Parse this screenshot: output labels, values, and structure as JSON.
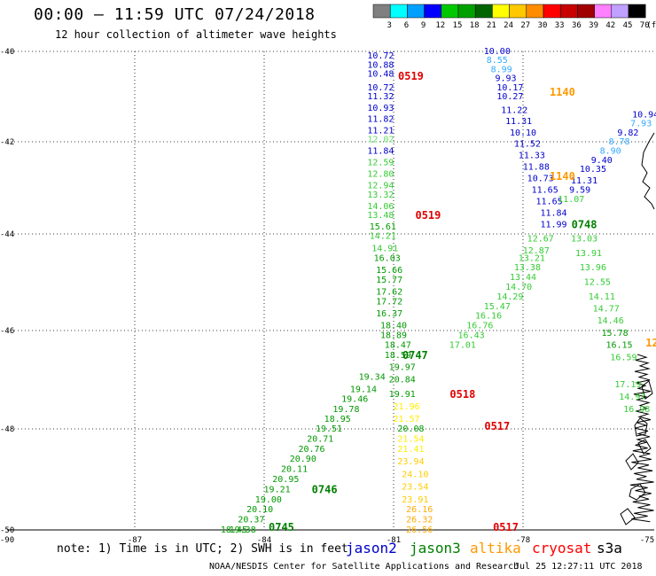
{
  "header": {
    "title": "00:00 – 11:59 UTC 07/24/2018",
    "subtitle": "12 hour collection of altimeter wave heights"
  },
  "colorbar": {
    "unit": "(ft)",
    "ticks": [
      "3",
      "6",
      "9",
      "12",
      "15",
      "18",
      "21",
      "24",
      "27",
      "30",
      "33",
      "36",
      "39",
      "42",
      "45",
      "70"
    ],
    "colors": [
      "#808080",
      "#00ffff",
      "#00a0ff",
      "#0000ff",
      "#00c800",
      "#00a000",
      "#006400",
      "#ffff00",
      "#ffc800",
      "#ff8c00",
      "#ff0000",
      "#c80000",
      "#a00000",
      "#ff80ff",
      "#c0a0ff",
      "#000000"
    ]
  },
  "map": {
    "lon_range": [
      -90,
      -75
    ],
    "lat_range": [
      -50,
      -40
    ],
    "lon_ticks": [
      "-90",
      "-87",
      "-84",
      "-81",
      "-78",
      "-75"
    ],
    "lat_ticks": [
      "-40",
      "-42",
      "-44",
      "-46",
      "-48",
      "-50"
    ],
    "grid_color": "#000000",
    "coast_color": "#000000"
  },
  "missions": [
    {
      "name": "jason2",
      "color": "#0000cc"
    },
    {
      "name": "jason3",
      "color": "#008000"
    },
    {
      "name": "altika",
      "color": "#ff9900"
    },
    {
      "name": "cryosat",
      "color": "#ff0000"
    },
    {
      "name": "s3a",
      "color": "#000000"
    }
  ],
  "passes": [
    {
      "time": "0519",
      "mission": "cryosat",
      "lon": -80.6,
      "lat": -40.55,
      "color": "#e00000"
    },
    {
      "time": "1140",
      "mission": "altika",
      "lon": -77.1,
      "lat": -40.9,
      "color": "#ff9900"
    },
    {
      "time": "1140",
      "mission": "altika",
      "lon": -77.1,
      "lat": -42.75,
      "color": "#ff9900"
    },
    {
      "time": "0519",
      "mission": "cryosat",
      "lon": -80.2,
      "lat": -43.6,
      "color": "#e00000"
    },
    {
      "time": "0748",
      "mission": "jason3",
      "lon": -76.6,
      "lat": -43.8,
      "color": "#008000"
    },
    {
      "time": "0747",
      "mission": "jason3",
      "lon": -80.5,
      "lat": -46.5,
      "color": "#008000"
    },
    {
      "time": "0518",
      "mission": "cryosat",
      "lon": -79.4,
      "lat": -47.3,
      "color": "#e00000"
    },
    {
      "time": "0517",
      "mission": "cryosat",
      "lon": -78.6,
      "lat": -47.95,
      "color": "#e00000"
    },
    {
      "time": "0746",
      "mission": "jason3",
      "lon": -82.6,
      "lat": -49.2,
      "color": "#008000"
    },
    {
      "time": "0745",
      "mission": "jason3",
      "lon": -83.6,
      "lat": -49.95,
      "color": "#008000"
    },
    {
      "time": "0517",
      "mission": "cryosat",
      "lon": -78.4,
      "lat": -49.95,
      "color": "#e00000"
    },
    {
      "time": "12",
      "mission": "altika",
      "lon": -75.05,
      "lat": -46.25,
      "color": "#ff9900"
    }
  ],
  "swh_labels": [
    {
      "v": "10.72",
      "lon": -81.3,
      "lat": -40.1,
      "c": "#0000cc"
    },
    {
      "v": "10.88",
      "lon": -81.3,
      "lat": -40.3,
      "c": "#0000cc"
    },
    {
      "v": "10.48",
      "lon": -81.3,
      "lat": -40.5,
      "c": "#0000cc"
    },
    {
      "v": "10.72",
      "lon": -81.3,
      "lat": -40.8,
      "c": "#0000cc"
    },
    {
      "v": "11.32",
      "lon": -81.3,
      "lat": -41.0,
      "c": "#0000cc"
    },
    {
      "v": "10.93",
      "lon": -81.3,
      "lat": -41.25,
      "c": "#0000cc"
    },
    {
      "v": "11.82",
      "lon": -81.3,
      "lat": -41.5,
      "c": "#0000cc"
    },
    {
      "v": "11.21",
      "lon": -81.3,
      "lat": -41.75,
      "c": "#0000cc"
    },
    {
      "v": "12.02",
      "lon": -81.3,
      "lat": -41.95,
      "c": "#66dd66"
    },
    {
      "v": "11.84",
      "lon": -81.3,
      "lat": -42.2,
      "c": "#0000cc"
    },
    {
      "v": "12.59",
      "lon": -81.3,
      "lat": -42.45,
      "c": "#33cc33"
    },
    {
      "v": "12.80",
      "lon": -81.3,
      "lat": -42.7,
      "c": "#33cc33"
    },
    {
      "v": "12.94",
      "lon": -81.3,
      "lat": -42.95,
      "c": "#33cc33"
    },
    {
      "v": "13.32",
      "lon": -81.3,
      "lat": -43.15,
      "c": "#33cc33"
    },
    {
      "v": "14.06",
      "lon": -81.3,
      "lat": -43.4,
      "c": "#33cc33"
    },
    {
      "v": "13.48",
      "lon": -81.3,
      "lat": -43.6,
      "c": "#33cc33"
    },
    {
      "v": "15.61",
      "lon": -81.25,
      "lat": -43.85,
      "c": "#009900"
    },
    {
      "v": "14.21",
      "lon": -81.25,
      "lat": -44.05,
      "c": "#33cc33"
    },
    {
      "v": "14.91",
      "lon": -81.2,
      "lat": -44.3,
      "c": "#33cc33"
    },
    {
      "v": "16.03",
      "lon": -81.15,
      "lat": -44.5,
      "c": "#009900"
    },
    {
      "v": "15.66",
      "lon": -81.1,
      "lat": -44.75,
      "c": "#009900"
    },
    {
      "v": "15.77",
      "lon": -81.1,
      "lat": -44.95,
      "c": "#009900"
    },
    {
      "v": "17.62",
      "lon": -81.1,
      "lat": -45.2,
      "c": "#009900"
    },
    {
      "v": "17.72",
      "lon": -81.1,
      "lat": -45.4,
      "c": "#009900"
    },
    {
      "v": "16.37",
      "lon": -81.1,
      "lat": -45.65,
      "c": "#009900"
    },
    {
      "v": "18.40",
      "lon": -81.0,
      "lat": -45.9,
      "c": "#009900"
    },
    {
      "v": "18.89",
      "lon": -81.0,
      "lat": -46.1,
      "c": "#009900"
    },
    {
      "v": "18.47",
      "lon": -80.9,
      "lat": -46.3,
      "c": "#009900"
    },
    {
      "v": "18.59",
      "lon": -80.9,
      "lat": -46.5,
      "c": "#009900"
    },
    {
      "v": "19.97",
      "lon": -80.8,
      "lat": -46.75,
      "c": "#009900"
    },
    {
      "v": "20.84",
      "lon": -80.8,
      "lat": -47.0,
      "c": "#009900"
    },
    {
      "v": "19.91",
      "lon": -80.8,
      "lat": -47.3,
      "c": "#009900"
    },
    {
      "v": "21.96",
      "lon": -80.7,
      "lat": -47.55,
      "c": "#ffee00"
    },
    {
      "v": "21.57",
      "lon": -80.7,
      "lat": -47.8,
      "c": "#ffee00"
    },
    {
      "v": "20.08",
      "lon": -80.6,
      "lat": -48.0,
      "c": "#009900"
    },
    {
      "v": "21.54",
      "lon": -80.6,
      "lat": -48.2,
      "c": "#ffee00"
    },
    {
      "v": "21.41",
      "lon": -80.6,
      "lat": -48.4,
      "c": "#ffee00"
    },
    {
      "v": "23.94",
      "lon": -80.6,
      "lat": -48.65,
      "c": "#ffcc00"
    },
    {
      "v": "24.10",
      "lon": -80.5,
      "lat": -48.9,
      "c": "#ffcc00"
    },
    {
      "v": "23.54",
      "lon": -80.5,
      "lat": -49.15,
      "c": "#ffcc00"
    },
    {
      "v": "23.91",
      "lon": -80.5,
      "lat": -49.4,
      "c": "#ffcc00"
    },
    {
      "v": "26.16",
      "lon": -80.4,
      "lat": -49.6,
      "c": "#ffaa00"
    },
    {
      "v": "26.32",
      "lon": -80.4,
      "lat": -49.8,
      "c": "#ffaa00"
    },
    {
      "v": "26.56",
      "lon": -80.4,
      "lat": -50.0,
      "c": "#ffaa00"
    },
    {
      "v": "10.00",
      "lon": -78.6,
      "lat": -40.0,
      "c": "#0000cc"
    },
    {
      "v": "8.55",
      "lon": -78.6,
      "lat": -40.2,
      "c": "#33aaff"
    },
    {
      "v": "8.99",
      "lon": -78.5,
      "lat": -40.4,
      "c": "#33aaff"
    },
    {
      "v": "9.93",
      "lon": -78.4,
      "lat": -40.6,
      "c": "#0000cc"
    },
    {
      "v": "10.17",
      "lon": -78.3,
      "lat": -40.8,
      "c": "#0000cc"
    },
    {
      "v": "10.27",
      "lon": -78.3,
      "lat": -41.0,
      "c": "#0000cc"
    },
    {
      "v": "11.22",
      "lon": -78.2,
      "lat": -41.3,
      "c": "#0000cc"
    },
    {
      "v": "11.31",
      "lon": -78.1,
      "lat": -41.55,
      "c": "#0000cc"
    },
    {
      "v": "10.10",
      "lon": -78.0,
      "lat": -41.8,
      "c": "#0000cc"
    },
    {
      "v": "11.52",
      "lon": -77.9,
      "lat": -42.05,
      "c": "#0000cc"
    },
    {
      "v": "11.33",
      "lon": -77.8,
      "lat": -42.3,
      "c": "#0000cc"
    },
    {
      "v": "11.88",
      "lon": -77.7,
      "lat": -42.55,
      "c": "#0000cc"
    },
    {
      "v": "10.73",
      "lon": -77.6,
      "lat": -42.8,
      "c": "#0000cc"
    },
    {
      "v": "11.65",
      "lon": -77.5,
      "lat": -43.05,
      "c": "#0000cc"
    },
    {
      "v": "11.65",
      "lon": -77.4,
      "lat": -43.3,
      "c": "#0000cc"
    },
    {
      "v": "11.84",
      "lon": -77.3,
      "lat": -43.55,
      "c": "#0000cc"
    },
    {
      "v": "11.99",
      "lon": -77.3,
      "lat": -43.8,
      "c": "#0000cc"
    },
    {
      "v": "12.67",
      "lon": -77.6,
      "lat": -44.1,
      "c": "#33cc33"
    },
    {
      "v": "12.87",
      "lon": -77.7,
      "lat": -44.35,
      "c": "#33cc33"
    },
    {
      "v": "13.21",
      "lon": -77.8,
      "lat": -44.5,
      "c": "#33cc33"
    },
    {
      "v": "13.38",
      "lon": -77.9,
      "lat": -44.7,
      "c": "#33cc33"
    },
    {
      "v": "13.44",
      "lon": -78.0,
      "lat": -44.9,
      "c": "#33cc33"
    },
    {
      "v": "14.70",
      "lon": -78.1,
      "lat": -45.1,
      "c": "#33cc33"
    },
    {
      "v": "14.29",
      "lon": -78.3,
      "lat": -45.3,
      "c": "#33cc33"
    },
    {
      "v": "15.47",
      "lon": -78.6,
      "lat": -45.5,
      "c": "#33cc33"
    },
    {
      "v": "16.16",
      "lon": -78.8,
      "lat": -45.7,
      "c": "#33cc33"
    },
    {
      "v": "16.76",
      "lon": -79.0,
      "lat": -45.9,
      "c": "#33cc33"
    },
    {
      "v": "16.43",
      "lon": -79.2,
      "lat": -46.1,
      "c": "#33cc33"
    },
    {
      "v": "17.01",
      "lon": -79.4,
      "lat": -46.3,
      "c": "#33cc33"
    },
    {
      "v": "13.03",
      "lon": -76.6,
      "lat": -44.1,
      "c": "#33cc33"
    },
    {
      "v": "13.91",
      "lon": -76.5,
      "lat": -44.4,
      "c": "#33cc33"
    },
    {
      "v": "13.96",
      "lon": -76.4,
      "lat": -44.7,
      "c": "#33cc33"
    },
    {
      "v": "12.55",
      "lon": -76.3,
      "lat": -45.0,
      "c": "#33cc33"
    },
    {
      "v": "14.11",
      "lon": -76.2,
      "lat": -45.3,
      "c": "#33cc33"
    },
    {
      "v": "14.77",
      "lon": -76.1,
      "lat": -45.55,
      "c": "#33cc33"
    },
    {
      "v": "14.46",
      "lon": -76.0,
      "lat": -45.8,
      "c": "#33cc33"
    },
    {
      "v": "15.78",
      "lon": -75.9,
      "lat": -46.05,
      "c": "#009900"
    },
    {
      "v": "16.15",
      "lon": -75.8,
      "lat": -46.3,
      "c": "#009900"
    },
    {
      "v": "16.59",
      "lon": -75.7,
      "lat": -46.55,
      "c": "#33cc33"
    },
    {
      "v": "17.19",
      "lon": -75.6,
      "lat": -47.1,
      "c": "#33cc33"
    },
    {
      "v": "14.97",
      "lon": -75.5,
      "lat": -47.35,
      "c": "#33cc33"
    },
    {
      "v": "16.98",
      "lon": -75.4,
      "lat": -47.6,
      "c": "#33cc33"
    },
    {
      "v": "10.94",
      "lon": -75.2,
      "lat": -41.4,
      "c": "#0000cc"
    },
    {
      "v": "7.93",
      "lon": -75.3,
      "lat": -41.6,
      "c": "#33aaff"
    },
    {
      "v": "9.82",
      "lon": -75.6,
      "lat": -41.8,
      "c": "#0000cc"
    },
    {
      "v": "8.78",
      "lon": -75.8,
      "lat": -42.0,
      "c": "#33aaff"
    },
    {
      "v": "8.90",
      "lon": -76.0,
      "lat": -42.2,
      "c": "#33aaff"
    },
    {
      "v": "9.40",
      "lon": -76.2,
      "lat": -42.4,
      "c": "#0000cc"
    },
    {
      "v": "10.35",
      "lon": -76.4,
      "lat": -42.6,
      "c": "#0000cc"
    },
    {
      "v": "11.31",
      "lon": -76.6,
      "lat": -42.85,
      "c": "#0000cc"
    },
    {
      "v": "9.59",
      "lon": -76.7,
      "lat": -43.05,
      "c": "#0000cc"
    },
    {
      "v": "11.07",
      "lon": -76.9,
      "lat": -43.25,
      "c": "#33cc33"
    },
    {
      "v": "19.34",
      "lon": -81.5,
      "lat": -46.95,
      "c": "#009900"
    },
    {
      "v": "19.14",
      "lon": -81.7,
      "lat": -47.2,
      "c": "#009900"
    },
    {
      "v": "19.46",
      "lon": -81.9,
      "lat": -47.4,
      "c": "#009900"
    },
    {
      "v": "19.78",
      "lon": -82.1,
      "lat": -47.6,
      "c": "#009900"
    },
    {
      "v": "18.95",
      "lon": -82.3,
      "lat": -47.8,
      "c": "#009900"
    },
    {
      "v": "19.51",
      "lon": -82.5,
      "lat": -48.0,
      "c": "#009900"
    },
    {
      "v": "20.71",
      "lon": -82.7,
      "lat": -48.2,
      "c": "#009900"
    },
    {
      "v": "20.76",
      "lon": -82.9,
      "lat": -48.4,
      "c": "#009900"
    },
    {
      "v": "20.90",
      "lon": -83.1,
      "lat": -48.6,
      "c": "#009900"
    },
    {
      "v": "20.11",
      "lon": -83.3,
      "lat": -48.8,
      "c": "#009900"
    },
    {
      "v": "20.95",
      "lon": -83.5,
      "lat": -49.0,
      "c": "#009900"
    },
    {
      "v": "19.21",
      "lon": -83.7,
      "lat": -49.2,
      "c": "#009900"
    },
    {
      "v": "19.00",
      "lon": -83.9,
      "lat": -49.4,
      "c": "#009900"
    },
    {
      "v": "20.10",
      "lon": -84.1,
      "lat": -49.6,
      "c": "#009900"
    },
    {
      "v": "20.37",
      "lon": -84.3,
      "lat": -49.8,
      "c": "#009900"
    },
    {
      "v": "19.38",
      "lon": -84.5,
      "lat": -50.0,
      "c": "#009900"
    },
    {
      "v": "18.45",
      "lon": -84.7,
      "lat": -50.0,
      "c": "#009900"
    }
  ],
  "note": "note: 1) Time is in UTC; 2) SWH is in feet",
  "footer": "NOAA/NESDIS Center for Satellite Applications and Research",
  "timestamp": "Jul 25 12:27:11 UTC 2018"
}
